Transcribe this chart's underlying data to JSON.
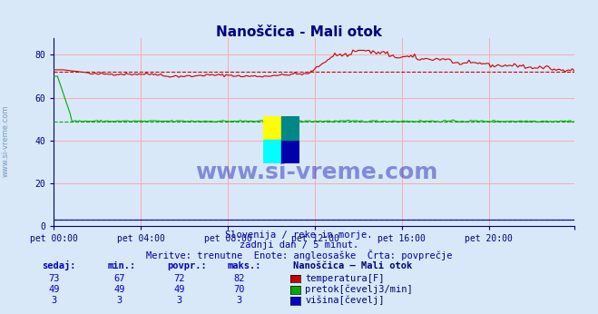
{
  "title": "Nanoščica - Mali otok",
  "bg_color": "#d8e8f8",
  "plot_bg_color": "#d8e8f8",
  "xlabel_ticks": [
    "pet 00:00",
    "pet 04:00",
    "pet 08:00",
    "pet 12:00",
    "pet 16:00",
    "pet 20:00"
  ],
  "yticks": [
    0,
    20,
    40,
    60,
    80
  ],
  "ylim": [
    0,
    88
  ],
  "xlim": [
    0,
    287
  ],
  "grid_color": "#ffaaaa",
  "title_color": "#000080",
  "axis_color": "#000080",
  "tick_color": "#000080",
  "text_color": "#000080",
  "subtitle1": "Slovenija / reke in morje.",
  "subtitle2": "zadnji dan / 5 minut.",
  "subtitle3": "Meritve: trenutne  Enote: angleosaške  Črta: povprečje",
  "footer_headers": [
    "sedaj:",
    "min.:",
    "povpr.:",
    "maks.:",
    "Nanoščica – Mali otok"
  ],
  "footer_data": [
    [
      73,
      67,
      72,
      82,
      "temperatura[F]",
      "#cc0000"
    ],
    [
      49,
      49,
      49,
      70,
      "pretok[čevelj3/min]",
      "#00aa00"
    ],
    [
      3,
      3,
      3,
      3,
      "višina[čevelj]",
      "#0000cc"
    ]
  ],
  "temp_avg": 72,
  "temp_min": 67,
  "temp_max": 82,
  "flow_avg": 49,
  "height_avg": 3
}
